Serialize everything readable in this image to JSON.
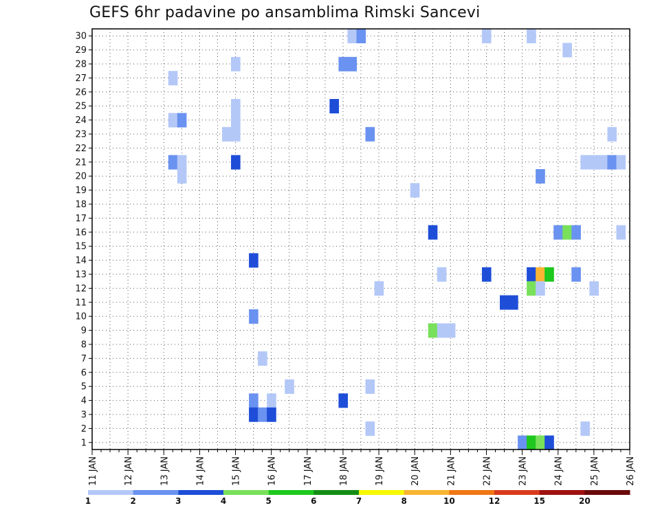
{
  "chart_data": {
    "type": "heatmap",
    "title": "GEFS 6hr padavine po ansamblima Rimski Sancevi",
    "x_tick_labels": [
      "11 JAN",
      "12 JAN",
      "13 JAN",
      "14 JAN",
      "15 JAN",
      "16 JAN",
      "17 JAN",
      "18 JAN",
      "19 JAN",
      "20 JAN",
      "21 JAN",
      "22 JAN",
      "23 JAN",
      "24 JAN",
      "25 JAN",
      "26 JAN"
    ],
    "x_range_days": [
      11,
      26
    ],
    "y_tick_labels": [
      "1",
      "2",
      "3",
      "4",
      "5",
      "6",
      "7",
      "8",
      "9",
      "10",
      "11",
      "12",
      "13",
      "14",
      "15",
      "16",
      "17",
      "18",
      "19",
      "20",
      "21",
      "22",
      "23",
      "24",
      "25",
      "26",
      "27",
      "28",
      "29",
      "30"
    ],
    "y_range": [
      1,
      30
    ],
    "grid": true,
    "colorbar": {
      "position": "bottom",
      "labels": [
        "1",
        "2",
        "3",
        "4",
        "5",
        "6",
        "7",
        "8",
        "10",
        "12",
        "15",
        "20"
      ],
      "colors": [
        "#b4c8f8",
        "#6a92f0",
        "#1e4ed8",
        "#78e05a",
        "#1ec81e",
        "#148c14",
        "#f8f800",
        "#f8b432",
        "#f07814",
        "#d83c1c",
        "#a01010",
        "#6a0a0a"
      ]
    },
    "cells": [
      {
        "member": 30,
        "day": 18.25,
        "level": 1
      },
      {
        "member": 30,
        "day": 18.5,
        "level": 2
      },
      {
        "member": 30,
        "day": 22.0,
        "level": 1
      },
      {
        "member": 30,
        "day": 23.25,
        "level": 1
      },
      {
        "member": 29,
        "day": 24.25,
        "level": 1
      },
      {
        "member": 28,
        "day": 15.0,
        "level": 1
      },
      {
        "member": 28,
        "day": 18.0,
        "level": 2
      },
      {
        "member": 28,
        "day": 18.25,
        "level": 2
      },
      {
        "member": 27,
        "day": 13.25,
        "level": 1
      },
      {
        "member": 25,
        "day": 15.0,
        "level": 1
      },
      {
        "member": 25,
        "day": 17.75,
        "level": 3
      },
      {
        "member": 24,
        "day": 13.25,
        "level": 1
      },
      {
        "member": 24,
        "day": 13.5,
        "level": 2
      },
      {
        "member": 24,
        "day": 15.0,
        "level": 1
      },
      {
        "member": 23,
        "day": 14.75,
        "level": 1
      },
      {
        "member": 23,
        "day": 15.0,
        "level": 1
      },
      {
        "member": 23,
        "day": 18.75,
        "level": 2
      },
      {
        "member": 23,
        "day": 25.5,
        "level": 1
      },
      {
        "member": 21,
        "day": 13.25,
        "level": 2
      },
      {
        "member": 21,
        "day": 13.5,
        "level": 1
      },
      {
        "member": 21,
        "day": 15.0,
        "level": 3
      },
      {
        "member": 21,
        "day": 24.75,
        "level": 1
      },
      {
        "member": 21,
        "day": 25.0,
        "level": 1
      },
      {
        "member": 21,
        "day": 25.25,
        "level": 1
      },
      {
        "member": 21,
        "day": 25.5,
        "level": 2
      },
      {
        "member": 21,
        "day": 25.75,
        "level": 1
      },
      {
        "member": 20,
        "day": 13.5,
        "level": 1
      },
      {
        "member": 20,
        "day": 23.5,
        "level": 2
      },
      {
        "member": 19,
        "day": 20.0,
        "level": 1
      },
      {
        "member": 16,
        "day": 20.5,
        "level": 3
      },
      {
        "member": 16,
        "day": 24.0,
        "level": 2
      },
      {
        "member": 16,
        "day": 24.25,
        "level": 4
      },
      {
        "member": 16,
        "day": 24.5,
        "level": 2
      },
      {
        "member": 16,
        "day": 25.75,
        "level": 1
      },
      {
        "member": 14,
        "day": 15.5,
        "level": 3
      },
      {
        "member": 13,
        "day": 20.75,
        "level": 1
      },
      {
        "member": 13,
        "day": 22.0,
        "level": 3
      },
      {
        "member": 13,
        "day": 23.25,
        "level": 3
      },
      {
        "member": 13,
        "day": 23.5,
        "level": 8
      },
      {
        "member": 13,
        "day": 23.75,
        "level": 5
      },
      {
        "member": 13,
        "day": 24.5,
        "level": 2
      },
      {
        "member": 12,
        "day": 19.0,
        "level": 1
      },
      {
        "member": 12,
        "day": 23.25,
        "level": 4
      },
      {
        "member": 12,
        "day": 23.5,
        "level": 1
      },
      {
        "member": 12,
        "day": 25.0,
        "level": 1
      },
      {
        "member": 11,
        "day": 22.5,
        "level": 3
      },
      {
        "member": 11,
        "day": 22.75,
        "level": 3
      },
      {
        "member": 10,
        "day": 15.5,
        "level": 2
      },
      {
        "member": 9,
        "day": 20.5,
        "level": 4
      },
      {
        "member": 9,
        "day": 20.75,
        "level": 1
      },
      {
        "member": 9,
        "day": 21.0,
        "level": 1
      },
      {
        "member": 7,
        "day": 15.75,
        "level": 1
      },
      {
        "member": 5,
        "day": 16.5,
        "level": 1
      },
      {
        "member": 5,
        "day": 18.75,
        "level": 1
      },
      {
        "member": 4,
        "day": 15.5,
        "level": 2
      },
      {
        "member": 4,
        "day": 16.0,
        "level": 1
      },
      {
        "member": 4,
        "day": 18.0,
        "level": 3
      },
      {
        "member": 3,
        "day": 15.5,
        "level": 3
      },
      {
        "member": 3,
        "day": 15.75,
        "level": 2
      },
      {
        "member": 3,
        "day": 16.0,
        "level": 3
      },
      {
        "member": 2,
        "day": 18.75,
        "level": 1
      },
      {
        "member": 2,
        "day": 24.75,
        "level": 1
      },
      {
        "member": 1,
        "day": 23.0,
        "level": 2
      },
      {
        "member": 1,
        "day": 23.25,
        "level": 5
      },
      {
        "member": 1,
        "day": 23.5,
        "level": 4
      },
      {
        "member": 1,
        "day": 23.75,
        "level": 3
      }
    ]
  }
}
